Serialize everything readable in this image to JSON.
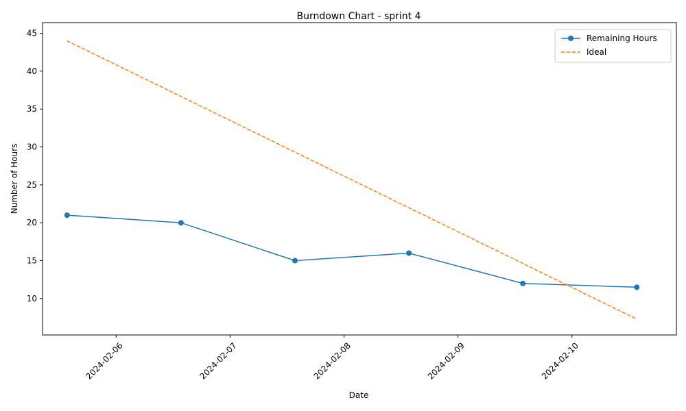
{
  "chart_data": {
    "type": "line",
    "title": "Burndown Chart - sprint 4",
    "xlabel": "Date",
    "ylabel": "Number of Hours",
    "x_tick_labels": [
      "2024-02-06",
      "2024-02-07",
      "2024-02-08",
      "2024-02-09",
      "2024-02-10"
    ],
    "y_ticks": [
      10,
      15,
      20,
      25,
      30,
      35,
      40,
      45
    ],
    "xlim": [
      "2024-02-05 08:30",
      "2024-02-10 22:00"
    ],
    "ylim": [
      5.2,
      46.4
    ],
    "grid": false,
    "legend_position": "top-right",
    "series": [
      {
        "name": "Remaining Hours",
        "style": "solid-with-markers",
        "color": "#1f77b4",
        "x": [
          "2024-02-05 13:40",
          "2024-02-06 13:40",
          "2024-02-07 13:40",
          "2024-02-08 13:40",
          "2024-02-09 13:40",
          "2024-02-10 13:40"
        ],
        "values": [
          21,
          20,
          15,
          16,
          12,
          11.5
        ]
      },
      {
        "name": "Ideal",
        "style": "dashed",
        "color": "#ff7f0e",
        "x": [
          "2024-02-05 13:40",
          "2024-02-10 13:40"
        ],
        "values": [
          44,
          7.3
        ]
      }
    ]
  }
}
